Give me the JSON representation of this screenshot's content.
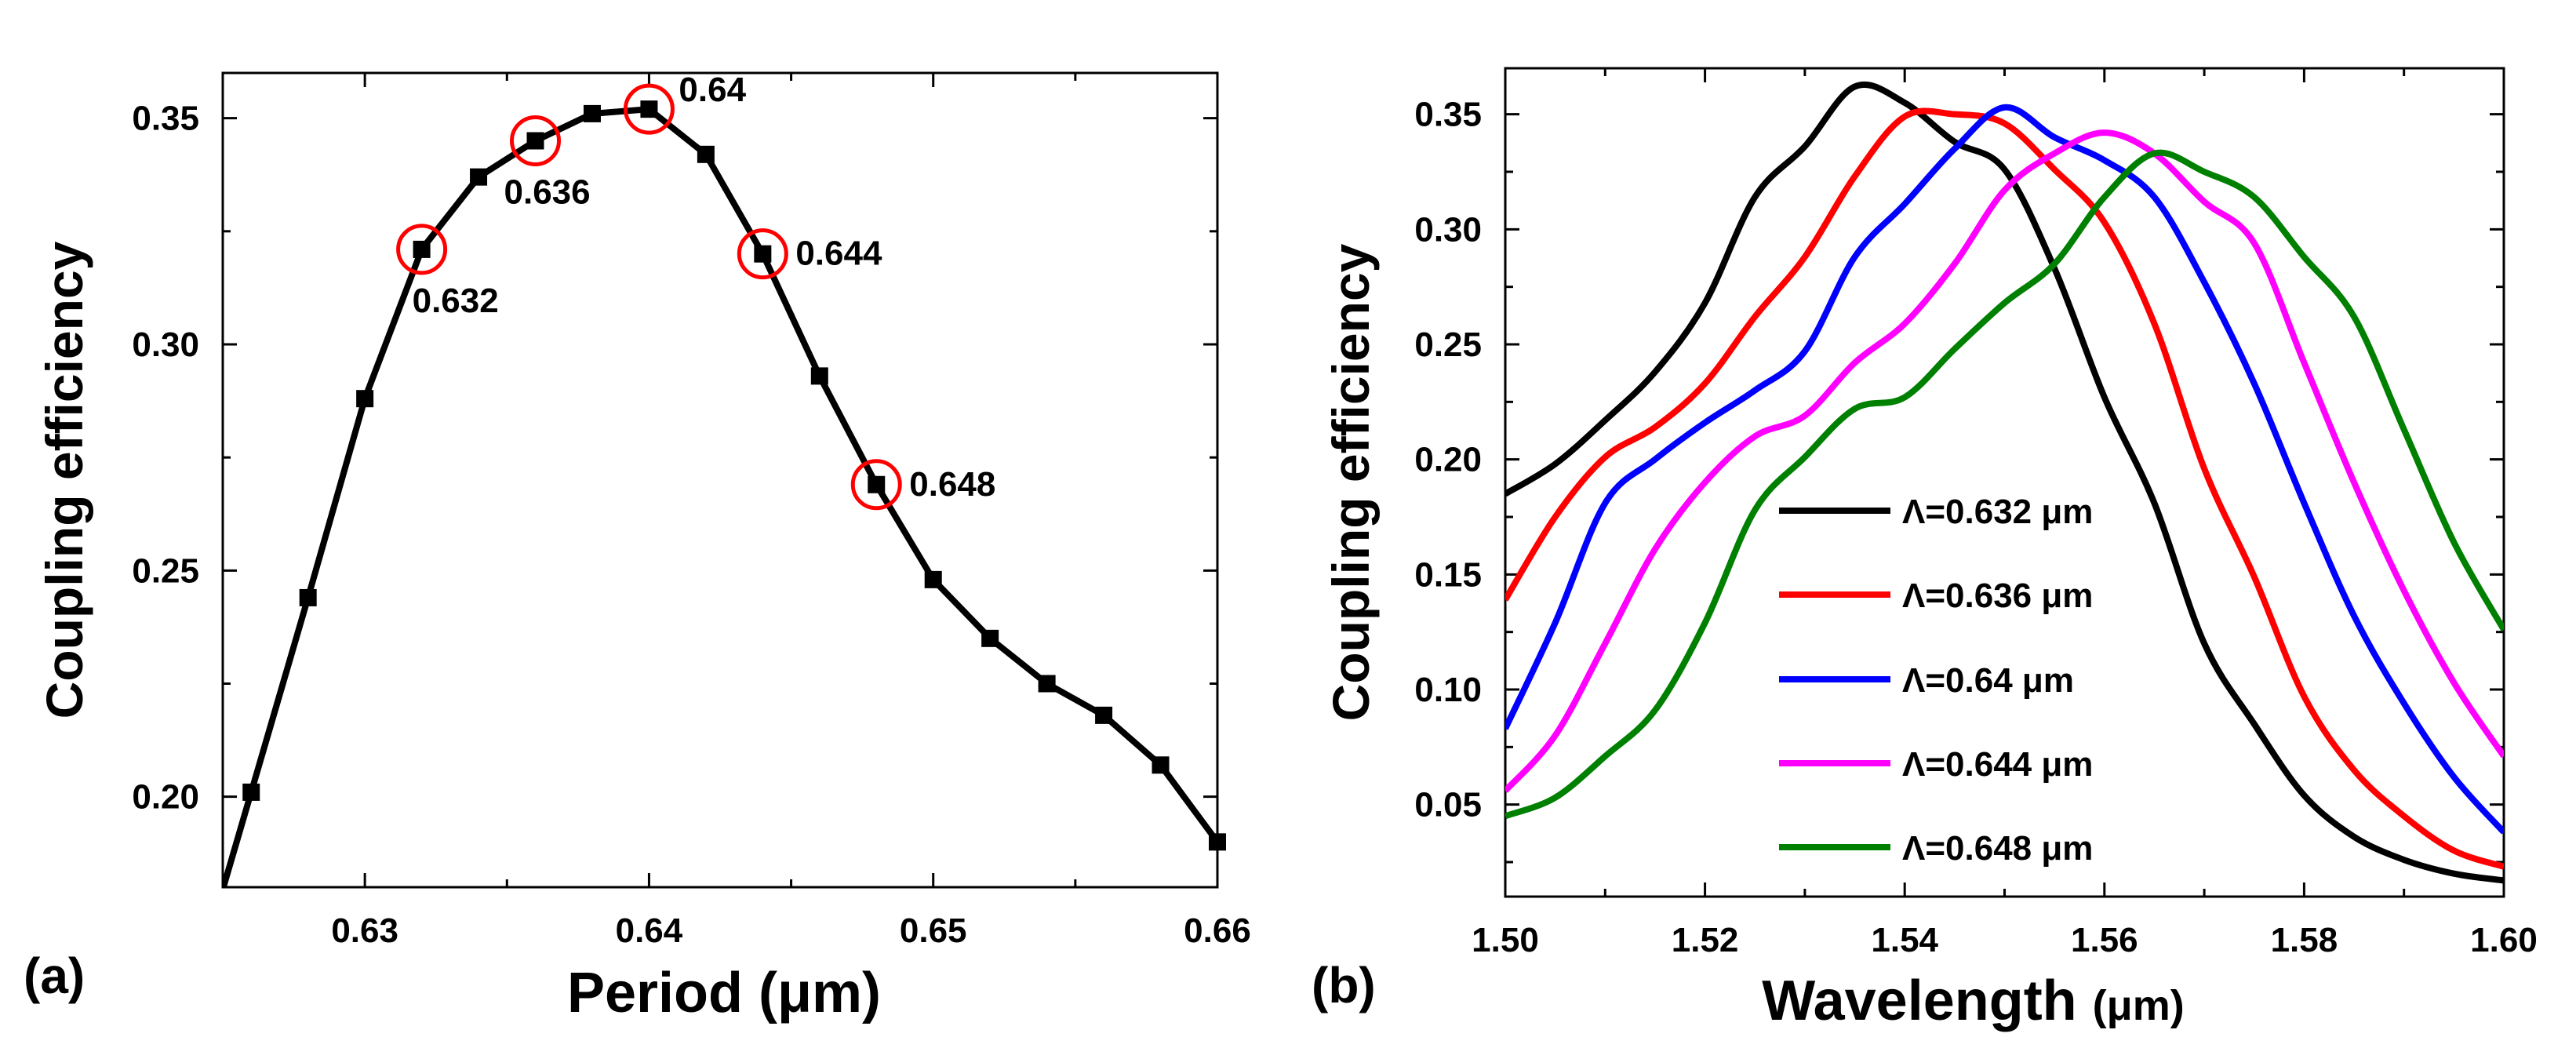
{
  "chart_data": [
    {
      "panel_label": "(a)",
      "type": "line",
      "xlabel": "Period (μm)",
      "ylabel": "Coupling efficiency",
      "xlim": [
        0.625,
        0.66
      ],
      "ylim": [
        0.18,
        0.36
      ],
      "xticks": [
        "0.63",
        "0.64",
        "0.65",
        "0.66"
      ],
      "xtick_values": [
        0.63,
        0.64,
        0.65,
        0.66
      ],
      "yticks": [
        "0.20",
        "0.25",
        "0.30",
        "0.35"
      ],
      "ytick_values": [
        0.2,
        0.25,
        0.3,
        0.35
      ],
      "series": [
        {
          "name": "Coupling efficiency",
          "color": "#000000",
          "marker": "square",
          "x": [
            0.626,
            0.628,
            0.63,
            0.632,
            0.634,
            0.636,
            0.638,
            0.64,
            0.642,
            0.644,
            0.646,
            0.648,
            0.65,
            0.652,
            0.654,
            0.656,
            0.658,
            0.66
          ],
          "y": [
            0.201,
            0.244,
            0.288,
            0.321,
            0.337,
            0.345,
            0.351,
            0.352,
            0.342,
            0.32,
            0.293,
            0.269,
            0.248,
            0.235,
            0.225,
            0.218,
            0.207,
            0.19
          ]
        }
      ],
      "annotations": [
        {
          "text": "0.632",
          "x": 0.632,
          "y": 0.321,
          "pos": "below"
        },
        {
          "text": "0.636",
          "x": 0.636,
          "y": 0.345,
          "pos": "below"
        },
        {
          "text": "0.64",
          "x": 0.64,
          "y": 0.352,
          "pos": "right-up"
        },
        {
          "text": "0.644",
          "x": 0.644,
          "y": 0.32,
          "pos": "right"
        },
        {
          "text": "0.648",
          "x": 0.648,
          "y": 0.269,
          "pos": "right"
        }
      ],
      "highlight_color": "#ff0000",
      "grid": false
    },
    {
      "panel_label": "(b)",
      "type": "line",
      "xlabel": "Wavelength",
      "xlabel_unit": "(μm)",
      "ylabel": "Coupling efficiency",
      "xlim": [
        1.5,
        1.6
      ],
      "ylim": [
        0.01,
        0.37
      ],
      "xticks": [
        "1.50",
        "1.52",
        "1.54",
        "1.56",
        "1.58",
        "1.60"
      ],
      "xtick_values": [
        1.5,
        1.52,
        1.54,
        1.56,
        1.58,
        1.6
      ],
      "yticks": [
        "0.05",
        "0.10",
        "0.15",
        "0.20",
        "0.25",
        "0.30",
        "0.35"
      ],
      "ytick_values": [
        0.05,
        0.1,
        0.15,
        0.2,
        0.25,
        0.3,
        0.35
      ],
      "legend_position": "center",
      "grid": false,
      "x": [
        1.5,
        1.505,
        1.51,
        1.515,
        1.52,
        1.525,
        1.53,
        1.535,
        1.54,
        1.545,
        1.55,
        1.555,
        1.56,
        1.565,
        1.57,
        1.575,
        1.58,
        1.585,
        1.59,
        1.595,
        1.6
      ],
      "series": [
        {
          "name": "Λ=0.632 μm",
          "color": "#000000",
          "y": [
            0.185,
            0.198,
            0.217,
            0.238,
            0.268,
            0.314,
            0.336,
            0.362,
            0.355,
            0.338,
            0.326,
            0.283,
            0.227,
            0.181,
            0.12,
            0.085,
            0.054,
            0.036,
            0.026,
            0.02,
            0.017
          ]
        },
        {
          "name": "Λ=0.636 μm",
          "color": "#ff0000",
          "y": [
            0.139,
            0.175,
            0.201,
            0.214,
            0.233,
            0.262,
            0.288,
            0.323,
            0.349,
            0.35,
            0.346,
            0.326,
            0.303,
            0.259,
            0.196,
            0.149,
            0.097,
            0.065,
            0.045,
            0.03,
            0.023
          ]
        },
        {
          "name": "Λ=0.64 μm",
          "color": "#0000ff",
          "y": [
            0.083,
            0.129,
            0.181,
            0.2,
            0.216,
            0.23,
            0.247,
            0.288,
            0.311,
            0.335,
            0.353,
            0.34,
            0.33,
            0.314,
            0.277,
            0.233,
            0.181,
            0.132,
            0.094,
            0.062,
            0.038
          ]
        },
        {
          "name": "Λ=0.644 μm",
          "color": "#ff00ff",
          "y": [
            0.056,
            0.08,
            0.12,
            0.161,
            0.19,
            0.21,
            0.219,
            0.242,
            0.259,
            0.285,
            0.317,
            0.333,
            0.342,
            0.333,
            0.312,
            0.294,
            0.242,
            0.19,
            0.143,
            0.103,
            0.071
          ]
        },
        {
          "name": "Λ=0.648 μm",
          "color": "#008000",
          "y": [
            0.045,
            0.053,
            0.071,
            0.091,
            0.129,
            0.178,
            0.201,
            0.222,
            0.227,
            0.248,
            0.268,
            0.285,
            0.314,
            0.333,
            0.325,
            0.314,
            0.288,
            0.262,
            0.213,
            0.164,
            0.126
          ]
        }
      ]
    }
  ]
}
